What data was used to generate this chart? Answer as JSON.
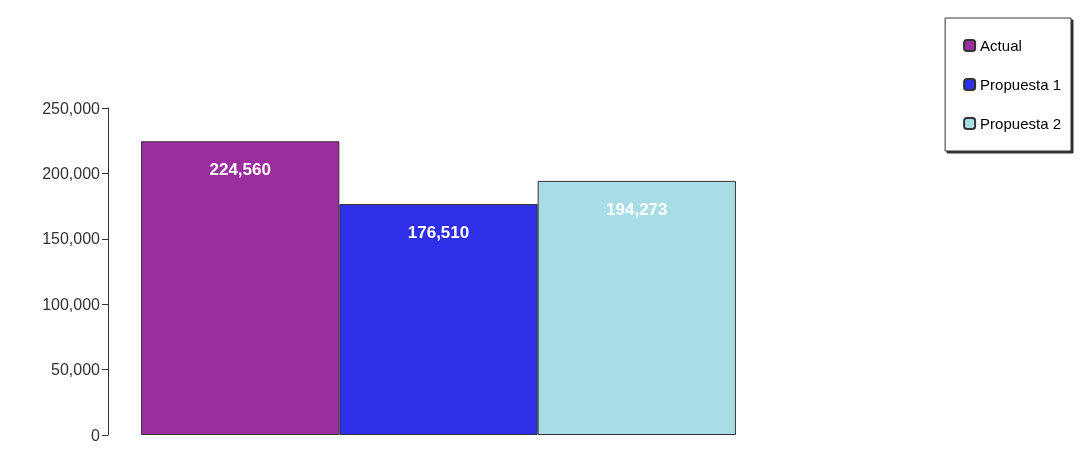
{
  "chart_data": {
    "type": "bar",
    "categories": [
      null
    ],
    "series": [
      {
        "name": "Actual",
        "color": "#9b2d9f",
        "values": [
          224560
        ],
        "value_labels": [
          "224,560"
        ]
      },
      {
        "name": "Propuesta 1",
        "color": "#2f2fe8",
        "values": [
          176510
        ],
        "value_labels": [
          "176,510"
        ]
      },
      {
        "name": "Propuesta 2",
        "color": "#a8dde6",
        "values": [
          194273
        ],
        "value_labels": [
          "194,273"
        ]
      }
    ],
    "ylim": [
      0,
      250000
    ],
    "yticks": [
      {
        "value": 0,
        "label": "0"
      },
      {
        "value": 50000,
        "label": "50,000"
      },
      {
        "value": 100000,
        "label": "100,000"
      },
      {
        "value": 150000,
        "label": "150,000"
      },
      {
        "value": 200000,
        "label": "200,000"
      },
      {
        "value": 250000,
        "label": "250,000"
      }
    ],
    "grid": false,
    "legend": "top right"
  }
}
